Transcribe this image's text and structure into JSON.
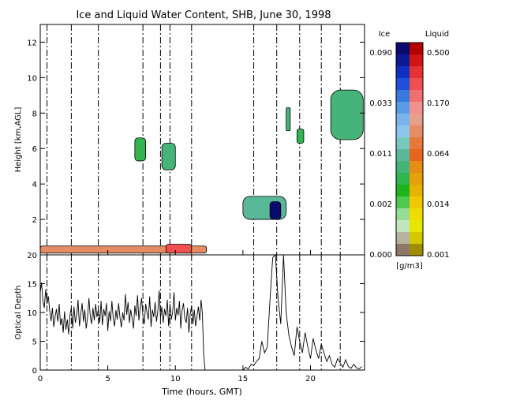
{
  "chart_data": [
    {
      "type": "heatmap",
      "title": "Ice and Liquid Water Content, SHB, June 30, 1998",
      "xlabel": "",
      "ylabel": "Height [km,AGL]",
      "xlim": [
        0,
        24
      ],
      "ylim": [
        0,
        13
      ],
      "xticks": [
        "0",
        "5",
        "10",
        "15",
        "20"
      ],
      "yticks": [
        "2",
        "4",
        "6",
        "8",
        "10",
        "12"
      ],
      "grid": false,
      "dash_lines_hours": [
        0.5,
        2.3,
        4.3,
        7.6,
        8.9,
        9.6,
        11.2,
        15.8,
        17.5,
        19.2,
        20.8,
        22.2
      ],
      "cloud_features": [
        {
          "t0": 0.0,
          "t1": 12.3,
          "z0": 0.1,
          "z1": 0.5,
          "kind": "liquid",
          "value": 0.04
        },
        {
          "t0": 9.3,
          "t1": 11.2,
          "z0": 0.1,
          "z1": 0.6,
          "kind": "liquid",
          "value": 0.2
        },
        {
          "t0": 7.0,
          "t1": 7.8,
          "z0": 5.3,
          "z1": 6.6,
          "kind": "ice",
          "value": 0.003
        },
        {
          "t0": 9.0,
          "t1": 10.0,
          "z0": 4.8,
          "z1": 6.3,
          "kind": "ice",
          "value": 0.004
        },
        {
          "t0": 15.0,
          "t1": 18.2,
          "z0": 2.0,
          "z1": 3.3,
          "kind": "ice",
          "value": 0.005
        },
        {
          "t0": 17.0,
          "t1": 17.8,
          "z0": 2.0,
          "z1": 3.0,
          "kind": "ice",
          "value": 0.08
        },
        {
          "t0": 18.2,
          "t1": 18.5,
          "z0": 7.0,
          "z1": 8.3,
          "kind": "ice",
          "value": 0.004
        },
        {
          "t0": 19.0,
          "t1": 19.5,
          "z0": 6.3,
          "z1": 7.1,
          "kind": "ice",
          "value": 0.003
        },
        {
          "t0": 21.5,
          "t1": 23.9,
          "z0": 6.5,
          "z1": 9.3,
          "kind": "ice",
          "value": 0.004
        }
      ],
      "colorbar": {
        "ice_label": "Ice",
        "liquid_label": "Liquid",
        "units": "[g/m3]",
        "ice_ticks": [
          "0.090",
          "0.033",
          "0.011",
          "0.002",
          "0.000"
        ],
        "liquid_ticks": [
          "0.500",
          "0.170",
          "0.064",
          "0.014",
          "0.001"
        ],
        "ice_colors": [
          "#0a0a6e",
          "#0d1a96",
          "#1030c0",
          "#1e50dc",
          "#3878e0",
          "#5a9ae6",
          "#78b4ec",
          "#8cc6f0",
          "#78c8c0",
          "#5ab89a",
          "#46b478",
          "#32b450",
          "#1eb41e",
          "#50c850",
          "#96dc96",
          "#c0e6c0",
          "#b4b4a0",
          "#8c7868"
        ],
        "liquid_colors": [
          "#b40000",
          "#d21414",
          "#e63232",
          "#f05050",
          "#f07070",
          "#f09090",
          "#e6a08c",
          "#e68c64",
          "#e6783c",
          "#e6641e",
          "#e68c14",
          "#e6a00a",
          "#e6b400",
          "#f0c800",
          "#f0dc00",
          "#e6e600",
          "#d2c800",
          "#a08c00"
        ]
      }
    },
    {
      "type": "line",
      "xlabel": "Time (hours, GMT)",
      "ylabel": "Optical Depth",
      "xlim": [
        0,
        24
      ],
      "ylim": [
        0,
        20
      ],
      "xticks": [
        "0",
        "5",
        "10",
        "15",
        "20"
      ],
      "yticks": [
        "0",
        "5",
        "10",
        "15",
        "20"
      ],
      "grid": false,
      "series": [
        {
          "x": [
            0.0,
            0.1,
            0.2,
            0.3,
            0.4,
            0.5,
            0.6,
            0.7,
            0.8,
            0.9,
            1.0,
            1.1,
            1.2,
            1.3,
            1.4,
            1.5,
            1.6,
            1.7,
            1.8,
            1.9,
            2.0,
            2.1,
            2.2,
            2.3,
            2.4,
            2.5,
            2.6,
            2.7,
            2.8,
            2.9,
            3.0,
            3.1,
            3.2,
            3.3,
            3.4,
            3.5,
            3.6,
            3.7,
            3.8,
            3.9,
            4.0,
            4.1,
            4.2,
            4.3,
            4.4,
            4.5,
            4.6,
            4.7,
            4.8,
            4.9,
            5.0,
            5.1,
            5.2,
            5.3,
            5.4,
            5.5,
            5.6,
            5.7,
            5.8,
            5.9,
            6.0,
            6.1,
            6.2,
            6.3,
            6.4,
            6.5,
            6.6,
            6.7,
            6.8,
            6.9,
            7.0,
            7.1,
            7.2,
            7.3,
            7.4,
            7.5,
            7.6,
            7.7,
            7.8,
            7.9,
            8.0,
            8.1,
            8.2,
            8.3,
            8.4,
            8.5,
            8.6,
            8.7,
            8.8,
            8.9,
            9.0,
            9.1,
            9.2,
            9.3,
            9.4,
            9.5,
            9.6,
            9.7,
            9.8,
            9.9,
            10.0,
            10.1,
            10.2,
            10.3,
            10.4,
            10.5,
            10.6,
            10.7,
            10.8,
            10.9,
            11.0,
            11.1,
            11.2,
            11.3,
            11.4,
            11.5,
            11.6,
            11.7,
            11.8,
            11.9,
            12.0,
            12.1,
            12.2
          ],
          "y": [
            13.5,
            15.2,
            12.0,
            10.8,
            14.0,
            11.5,
            12.8,
            10.2,
            8.5,
            10.8,
            7.5,
            9.2,
            10.6,
            8.4,
            11.5,
            7.8,
            9.0,
            6.5,
            10.2,
            7.0,
            8.8,
            6.2,
            9.6,
            10.8,
            7.2,
            11.0,
            8.2,
            9.5,
            12.2,
            7.6,
            9.8,
            11.6,
            8.4,
            10.5,
            7.2,
            9.0,
            12.5,
            9.4,
            8.0,
            10.8,
            8.6,
            11.5,
            9.2,
            10.5,
            8.2,
            12.0,
            7.8,
            10.6,
            9.4,
            11.6,
            6.8,
            10.2,
            8.5,
            12.0,
            9.0,
            7.6,
            10.4,
            8.8,
            11.6,
            9.2,
            7.4,
            10.0,
            8.6,
            13.2,
            9.6,
            11.8,
            8.2,
            10.5,
            9.0,
            7.2,
            11.2,
            9.4,
            13.0,
            8.6,
            10.8,
            12.5,
            9.2,
            8.0,
            11.5,
            10.0,
            8.8,
            12.8,
            7.5,
            10.5,
            9.2,
            11.8,
            8.4,
            10.2,
            13.8,
            9.0,
            11.0,
            8.2,
            10.6,
            9.4,
            12.2,
            7.6,
            11.5,
            8.8,
            10.0,
            13.5,
            8.6,
            10.8,
            9.5,
            12.0,
            7.2,
            10.4,
            11.6,
            9.0,
            8.2,
            10.8,
            6.5,
            9.8,
            11.2,
            8.0,
            10.5,
            7.6,
            9.4,
            11.0,
            8.6,
            12.2,
            9.8,
            2.5,
            0.0
          ]
        },
        {
          "x": [
            15.0,
            15.2,
            15.4,
            15.6,
            15.8,
            16.0,
            16.2,
            16.4,
            16.6,
            16.8,
            17.0,
            17.2,
            17.4,
            17.6,
            17.8,
            18.0,
            18.2,
            18.4,
            18.6,
            18.8,
            19.0,
            19.2,
            19.4,
            19.6,
            19.8,
            20.0,
            20.2,
            20.4,
            20.6,
            20.8,
            21.0,
            21.2,
            21.4,
            21.6,
            21.8,
            22.0,
            22.2,
            22.4,
            22.6,
            22.8,
            23.0,
            23.2,
            23.4,
            23.6,
            23.8
          ],
          "y": [
            0.0,
            0.5,
            0.2,
            1.0,
            0.8,
            1.5,
            2.0,
            5.0,
            3.0,
            4.0,
            12.0,
            19.5,
            20.0,
            12.5,
            8.0,
            20.0,
            10.0,
            6.0,
            4.0,
            2.5,
            7.5,
            5.0,
            3.0,
            6.5,
            4.0,
            2.0,
            5.5,
            3.5,
            2.0,
            4.5,
            3.0,
            1.5,
            2.5,
            1.0,
            0.5,
            2.0,
            1.2,
            0.5,
            1.8,
            0.6,
            0.3,
            1.0,
            0.4,
            0.2,
            0.6
          ]
        }
      ]
    }
  ]
}
